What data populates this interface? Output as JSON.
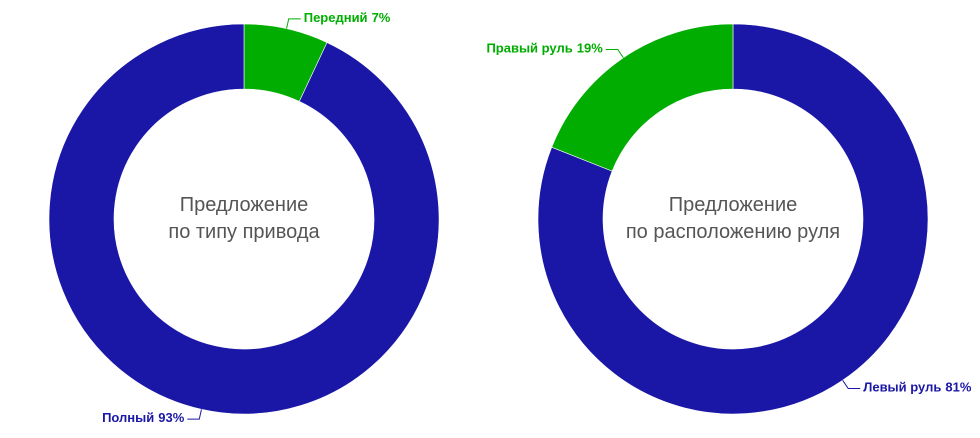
{
  "chart_data": [
    {
      "type": "pie",
      "center_text": [
        "Предложение",
        "по типу привода"
      ],
      "categories": [
        "Передний",
        "Полный"
      ],
      "values": [
        7,
        93
      ],
      "value_labels": [
        "7%",
        "93%"
      ],
      "colors": [
        "#00ad00",
        "#1a17a6"
      ]
    },
    {
      "type": "pie",
      "center_text": [
        "Предложение",
        "по расположению руля"
      ],
      "categories": [
        "Левый руль",
        "Правый руль"
      ],
      "values": [
        81,
        19
      ],
      "value_labels": [
        "81%",
        "19%"
      ],
      "colors": [
        "#1a17a6",
        "#00ad00"
      ]
    }
  ]
}
